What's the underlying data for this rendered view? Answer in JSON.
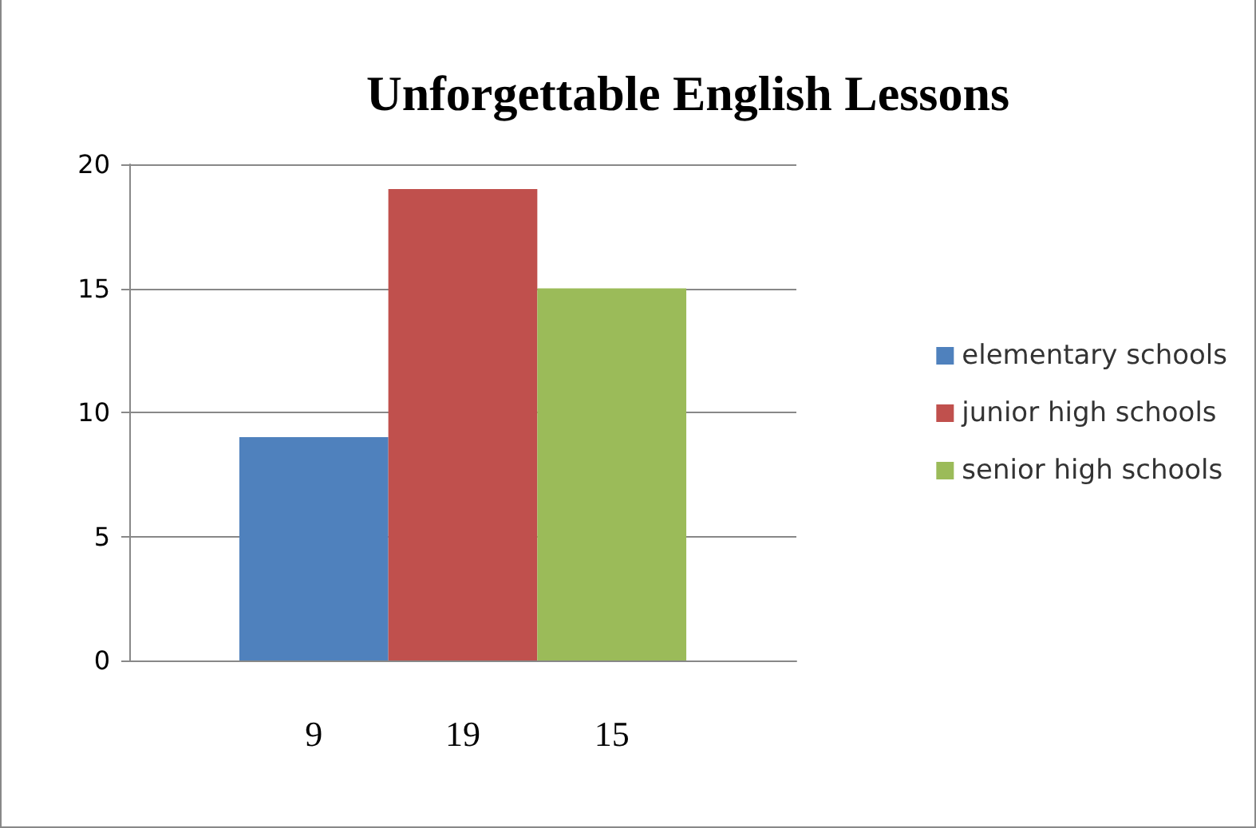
{
  "chart_data": {
    "type": "bar",
    "title": "Unforgettable English Lessons",
    "categories": [
      null
    ],
    "series": [
      {
        "name": "elementary schools",
        "color": "#4f81bd",
        "values": [
          9
        ]
      },
      {
        "name": "junior high schools",
        "color": "#c0504d",
        "values": [
          19
        ]
      },
      {
        "name": "senior high schools",
        "color": "#9bbb59",
        "values": [
          15
        ]
      }
    ],
    "ylim": [
      0,
      20
    ],
    "yticks": [
      0,
      5,
      10,
      15,
      20
    ],
    "grid": "y",
    "legend": "right",
    "data_labels": true
  }
}
